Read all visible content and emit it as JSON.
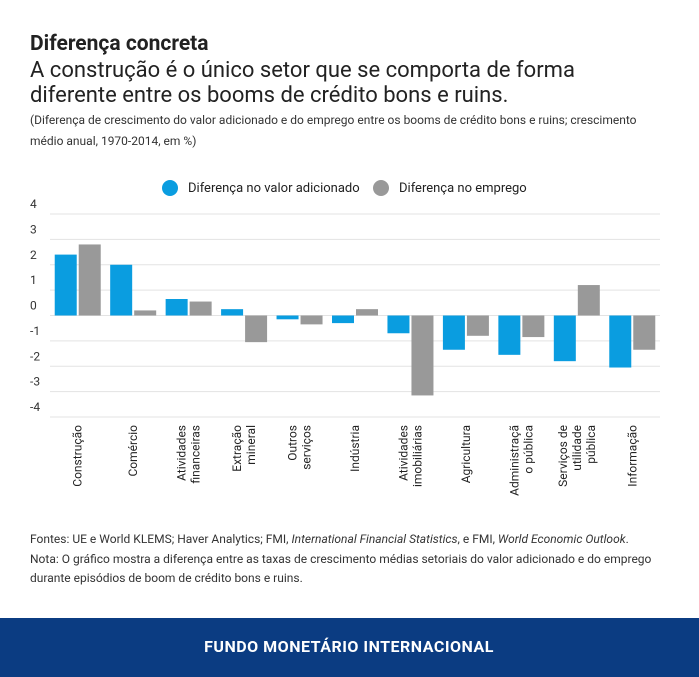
{
  "chart_data": {
    "type": "bar",
    "title": "Diferença concreta",
    "subtitle": [
      "A construção é o único setor que se comporta de forma",
      "diferente entre os booms de crédito bons e ruins."
    ],
    "description": [
      "(Diferença de crescimento do valor adicionado e do emprego entre os booms de crédito bons e ruins; crescimento",
      "médio anual, 1970-2014, em %)"
    ],
    "categories": [
      [
        "Construção"
      ],
      [
        "Comércio"
      ],
      [
        "Atividades",
        "financeiras"
      ],
      [
        "Extração",
        "mineral"
      ],
      [
        "Outros",
        "serviços"
      ],
      [
        "Indústria"
      ],
      [
        "Atividades",
        "imobiliárias"
      ],
      [
        "Agricultura"
      ],
      [
        "Administraçã",
        "o pública"
      ],
      [
        "Serviços de",
        "utilidade",
        "pública"
      ],
      [
        "Informação"
      ]
    ],
    "series": [
      {
        "name": "Diferença no valor adicionado",
        "color": "#0a9de0",
        "values": [
          2.4,
          2.0,
          0.65,
          0.25,
          -0.15,
          -0.3,
          -0.7,
          -1.35,
          -1.55,
          -1.8,
          -2.05
        ]
      },
      {
        "name": "Diferença no emprego",
        "color": "#999999",
        "values": [
          2.8,
          0.2,
          0.55,
          -1.05,
          -0.35,
          0.25,
          -3.15,
          -0.8,
          -0.85,
          1.2,
          -1.35
        ]
      }
    ],
    "ylim": [
      -4,
      4
    ],
    "yticks": [
      4,
      3,
      2,
      1,
      0,
      -1,
      -2,
      -3,
      -4
    ],
    "grid": true,
    "sources": [
      "Fontes: UE e World KLEMS; Haver Analytics; FMI, ",
      "International Financial Statistics",
      ", e FMI, ",
      "World Economic Outlook",
      "."
    ],
    "note": [
      "Nota: O gráfico mostra a diferença entre as taxas de crescimento médias setoriais do valor adicionado e do emprego",
      "durante episódios de boom de crédito bons e ruins."
    ],
    "footer": "FUNDO MONETÁRIO INTERNACIONAL"
  }
}
